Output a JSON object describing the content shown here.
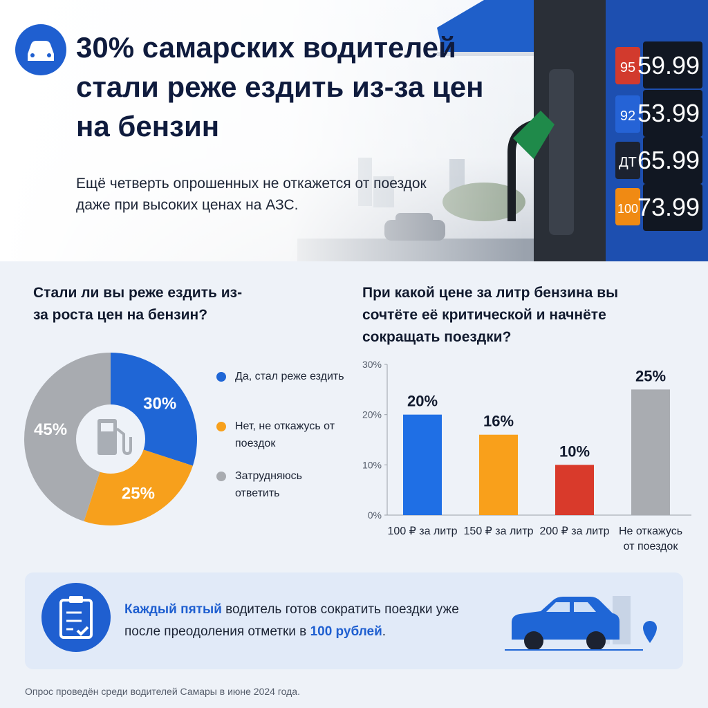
{
  "header": {
    "title": "30% самарских водителей стали реже ездить из-за цен на бензин",
    "subtitle": "Ещё четверть опрошенных не откажется от поездок даже при высоких ценах на АЗС."
  },
  "price_board": [
    {
      "grade": "95",
      "price": "59.99"
    },
    {
      "grade": "92",
      "price": "53.99"
    },
    {
      "grade": "ДТ",
      "price": "65.99"
    },
    {
      "grade": "100",
      "price": "73.99"
    }
  ],
  "chart_data": [
    {
      "type": "pie",
      "title": "Стали ли вы реже ездить из-за роста цен на бензин?",
      "categories": [
        "Да, стал реже ездить",
        "Нет, не откажусь от поездок",
        "Затрудняюсь ответить"
      ],
      "values": [
        30,
        25,
        45
      ],
      "value_labels": [
        "30%",
        "25%",
        "45%"
      ],
      "colors": [
        "#1f66d6",
        "#f7a01c",
        "#a8abb0"
      ]
    },
    {
      "type": "bar",
      "title": "При какой цене за литр бензина вы сочтёте её критической и начнёте сокращать поездки?",
      "categories": [
        "100 ₽ за литр",
        "150 ₽ за литр",
        "200 ₽ за литр",
        "Не откажусь от поездок"
      ],
      "values": [
        20,
        16,
        10,
        25
      ],
      "value_labels": [
        "20%",
        "16%",
        "10%",
        "25%"
      ],
      "colors": [
        "#1f6fe5",
        "#f9a01b",
        "#d93a2b",
        "#a9acb1"
      ],
      "ylim": [
        0,
        30
      ],
      "yticks": [
        {
          "value": 0,
          "label": "0%"
        },
        {
          "value": 10,
          "label": "10%"
        },
        {
          "value": 20,
          "label": "20%"
        },
        {
          "value": 30,
          "label": "30%"
        }
      ],
      "grid": false
    }
  ],
  "callout": {
    "parts": [
      "Каждый пятый",
      " водитель готов сократить поездки уже после преодоления отметки в ",
      "100 рублей",
      "."
    ]
  },
  "footer": "Опрос проведён среди водителей Самары в июне 2024 года."
}
